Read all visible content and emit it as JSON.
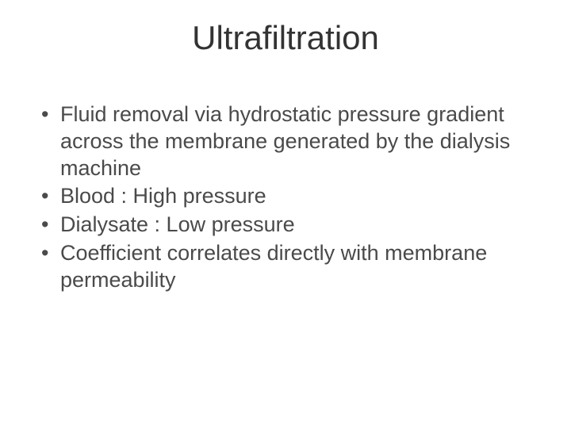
{
  "slide": {
    "title": "Ultrafiltration",
    "bullets": [
      "Fluid removal via hydrostatic pressure gradient across the membrane generated by the dialysis machine",
      "Blood : High pressure",
      "Dialysate : Low pressure",
      "Coefficient correlates directly with membrane permeability"
    ],
    "style": {
      "background_color": "#ffffff",
      "title_color": "#333333",
      "title_fontsize": 42,
      "title_weight": 400,
      "body_color": "#4a4a4a",
      "body_fontsize": 27,
      "body_line_height": 1.25,
      "bullet_char": "•",
      "font_family": "Malgun Gothic / Segoe UI",
      "slide_width": 720,
      "slide_height": 540
    }
  }
}
